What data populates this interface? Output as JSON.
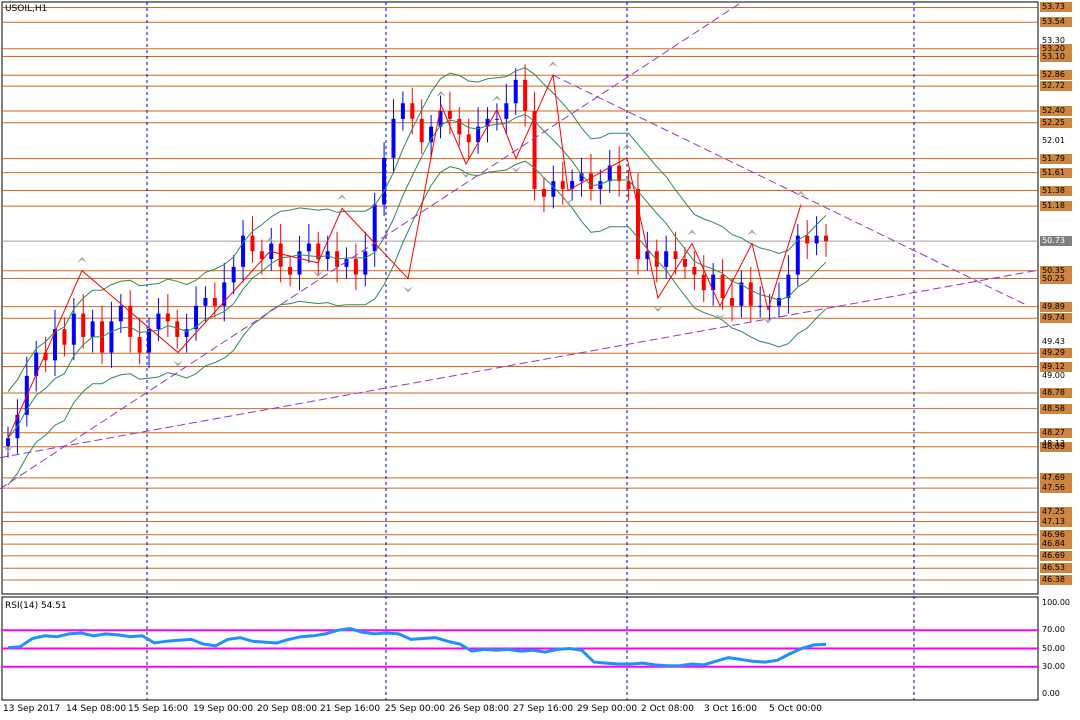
{
  "symbol_label": "USOIL,H1",
  "rsi_label": "RSI(14) 54.51",
  "colors": {
    "bull": "#0000ff",
    "bear": "#ff0000",
    "level": "#d2691e",
    "tag_bg": "#cd853f",
    "current_tag_bg": "#808080",
    "bollinger": "#2e8b57",
    "trend": "#9932cc",
    "zigzag": "#ff0000",
    "rsi_line": "#1e90ff",
    "rsi_level": "#ff00ff",
    "grid": "#0000cd"
  },
  "price_axis_ticks": [
    "53.30",
    "52.01",
    "49.43",
    "49.00",
    "48.13",
    "0"
  ],
  "level_tags": [
    "53.73",
    "53.54",
    "53.20",
    "53.10",
    "52.86",
    "52.72",
    "52.40",
    "52.25",
    "51.79",
    "51.61",
    "51.38",
    "51.18",
    "50.35",
    "50.25",
    "49.89",
    "49.74",
    "49.29",
    "49.12",
    "48.78",
    "48.58",
    "48.27",
    "48.09",
    "47.69",
    "47.56",
    "47.25",
    "47.13",
    "46.96",
    "46.84",
    "46.69",
    "46.53",
    "46.38"
  ],
  "current_price": "50.73",
  "rsi_axis_ticks": [
    "100.00",
    "70.00",
    "50.00",
    "30.00",
    "0.00"
  ],
  "time_labels": [
    "13 Sep 2017",
    "14 Sep 08:00",
    "15 Sep 16:00",
    "19 Sep 00:00",
    "20 Sep 08:00",
    "21 Sep 16:00",
    "25 Sep 00:00",
    "26 Sep 08:00",
    "27 Sep 16:00",
    "29 Sep 00:00",
    "2 Oct 08:00",
    "3 Oct 16:00",
    "5 Oct 00:00"
  ],
  "chart_data": {
    "type": "candlestick",
    "title": "USOIL,H1",
    "indicators": [
      "Bollinger Bands",
      "ZigZag",
      "Fractals",
      "RSI(14)"
    ],
    "ylim": [
      46.2,
      53.8
    ],
    "rsi": {
      "period": 14,
      "value": 54.51,
      "levels": [
        70,
        50,
        30
      ],
      "ylim": [
        0,
        100
      ]
    },
    "last_price": 50.73,
    "close_series": [
      48.2,
      48.5,
      49.0,
      49.3,
      49.2,
      49.6,
      49.4,
      49.8,
      49.5,
      49.7,
      49.3,
      49.7,
      49.9,
      49.5,
      49.3,
      49.6,
      49.8,
      49.7,
      49.5,
      49.6,
      49.9,
      50.0,
      49.9,
      50.2,
      50.4,
      50.8,
      50.6,
      50.5,
      50.7,
      50.4,
      50.3,
      50.6,
      50.7,
      50.5,
      50.6,
      50.4,
      50.5,
      50.3,
      50.6,
      51.2,
      51.8,
      52.3,
      52.5,
      52.3,
      52.0,
      52.2,
      52.4,
      52.3,
      52.1,
      52.0,
      52.2,
      52.3,
      52.3,
      52.5,
      52.8,
      52.4,
      51.4,
      51.3,
      51.5,
      51.4,
      51.5,
      51.6,
      51.4,
      51.5,
      51.7,
      51.5,
      51.4,
      50.5,
      50.6,
      50.4,
      50.6,
      50.5,
      50.4,
      50.3,
      50.1,
      50.3,
      50.0,
      49.9,
      50.2,
      49.9,
      49.9,
      49.9,
      50.0,
      50.3,
      50.8,
      50.7,
      50.8,
      50.73
    ],
    "rsi_series": [
      51,
      52,
      61,
      64,
      63,
      66,
      67,
      64,
      66,
      65,
      63,
      64,
      56,
      58,
      59,
      60,
      55,
      53,
      60,
      62,
      58,
      57,
      56,
      60,
      63,
      64,
      66,
      70,
      72,
      68,
      66,
      67,
      66,
      60,
      61,
      62,
      58,
      55,
      47,
      49,
      48,
      49,
      47,
      48,
      46,
      49,
      50,
      48,
      35,
      34,
      33,
      33,
      34,
      32,
      31,
      31,
      33,
      32,
      36,
      40,
      38,
      36,
      35,
      37,
      44,
      50,
      54,
      54.51
    ]
  }
}
